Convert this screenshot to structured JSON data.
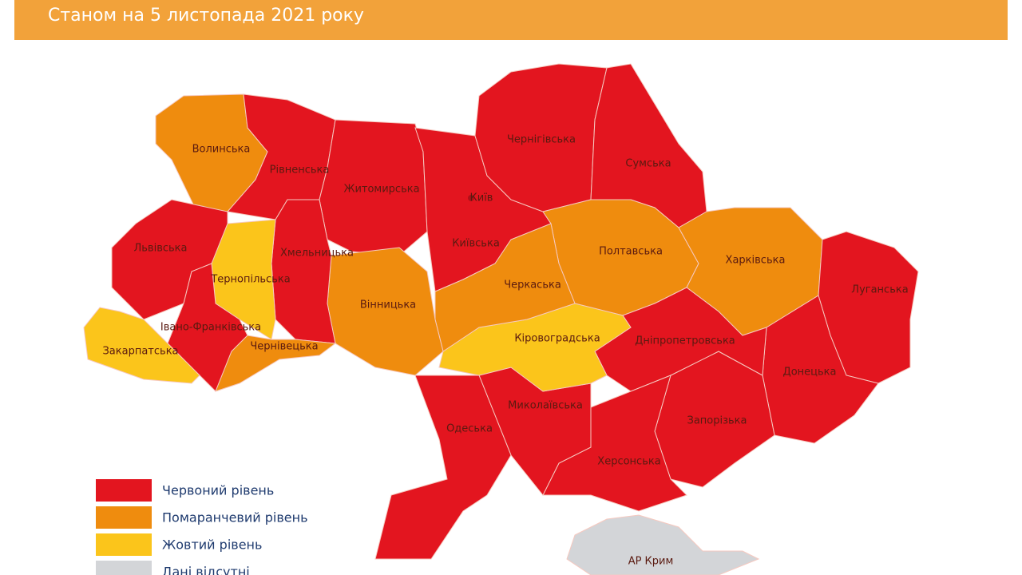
{
  "header": {
    "subtitle": "Станом на 5 листопада 2021 року"
  },
  "regions": [
    {
      "label": "Волинська",
      "color": "#ef8c0e"
    },
    {
      "label": "Рівненська",
      "color": "#e3151f"
    },
    {
      "label": "Житомирська",
      "color": "#e3151f"
    },
    {
      "label": "Київська",
      "color": "#e3151f"
    },
    {
      "label": "Чернігівська",
      "color": "#e3151f"
    },
    {
      "label": "Сумська",
      "color": "#e3151f"
    },
    {
      "label": "Полтавська",
      "color": "#ef8c0e"
    },
    {
      "label": "Харківська",
      "color": "#ef8c0e"
    },
    {
      "label": "Луганська",
      "color": "#e3151f"
    },
    {
      "label": "Донецька",
      "color": "#e3151f"
    },
    {
      "label": "Запорізька",
      "color": "#e3151f"
    },
    {
      "label": "Дніпропетровська",
      "color": "#e3151f"
    },
    {
      "label": "Херсонська",
      "color": "#e3151f"
    },
    {
      "label": "Миколаївська",
      "color": "#e3151f"
    },
    {
      "label": "Одеська",
      "color": "#e3151f"
    },
    {
      "label": "Кіровоградська",
      "color": "#fbc51b"
    },
    {
      "label": "Черкаська",
      "color": "#ef8c0e"
    },
    {
      "label": "Вінницька",
      "color": "#ef8c0e"
    },
    {
      "label": "Хмельницька",
      "color": "#e3151f"
    },
    {
      "label": "Тернопільська",
      "color": "#fbc51b"
    },
    {
      "label": "Львівська",
      "color": "#e3151f"
    },
    {
      "label": "Івано-Франківська",
      "color": "#e3151f"
    },
    {
      "label": "Чернівецька",
      "color": "#ef8c0e"
    },
    {
      "label": "Закарпатська",
      "color": "#fbc51b"
    },
    {
      "label": "АР Крим",
      "color": "#d3d5d8"
    }
  ],
  "city": {
    "label": "Київ"
  },
  "legend": [
    {
      "label": "Червоний рівень",
      "color": "#e3151f"
    },
    {
      "label": "Помаранчевий рівень",
      "color": "#ef8c0e"
    },
    {
      "label": "Жовтий рівень",
      "color": "#fbc51b"
    },
    {
      "label": "Дані відсутні",
      "color": "#d3d5d8"
    }
  ]
}
